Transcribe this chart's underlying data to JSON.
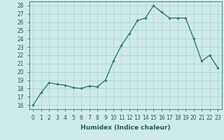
{
  "x": [
    0,
    1,
    2,
    3,
    4,
    5,
    6,
    7,
    8,
    9,
    10,
    11,
    12,
    13,
    14,
    15,
    16,
    17,
    18,
    19,
    20,
    21,
    22,
    23
  ],
  "y": [
    16.0,
    17.5,
    18.7,
    18.5,
    18.4,
    18.1,
    18.0,
    18.3,
    18.2,
    19.0,
    21.3,
    23.2,
    24.6,
    26.2,
    26.5,
    28.0,
    27.2,
    26.5,
    26.5,
    26.5,
    24.0,
    21.3,
    22.0,
    20.5
  ],
  "line_color": "#2e7d6e",
  "marker": "D",
  "marker_size": 1.8,
  "line_width": 1.0,
  "bg_color": "#ceeaea",
  "grid_color": "#aed0d0",
  "xlabel": "Humidex (Indice chaleur)",
  "xlabel_fontsize": 6.5,
  "yticks": [
    16,
    17,
    18,
    19,
    20,
    21,
    22,
    23,
    24,
    25,
    26,
    27,
    28
  ],
  "xticks": [
    0,
    1,
    2,
    3,
    4,
    5,
    6,
    7,
    8,
    9,
    10,
    11,
    12,
    13,
    14,
    15,
    16,
    17,
    18,
    19,
    20,
    21,
    22,
    23
  ],
  "xlim": [
    -0.5,
    23.5
  ],
  "ylim": [
    15.5,
    28.5
  ],
  "tick_fontsize": 5.5,
  "label_color": "#1e5f54"
}
